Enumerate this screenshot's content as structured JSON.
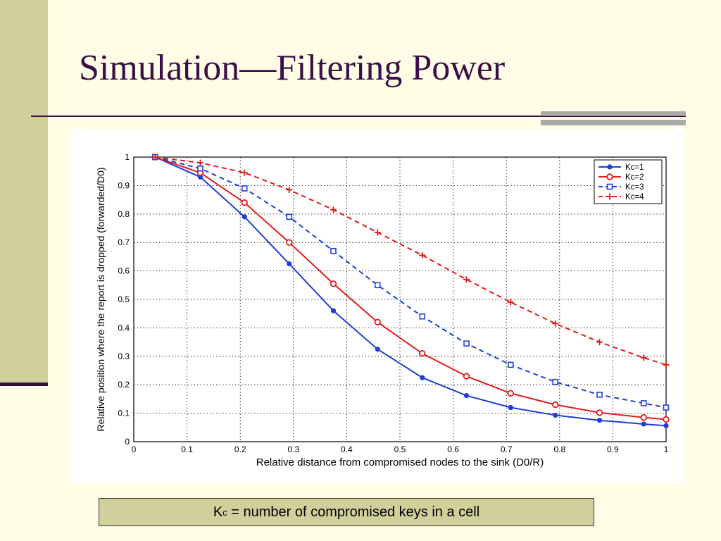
{
  "slide": {
    "title": "Simulation—Filtering Power",
    "caption": {
      "symbol": "K",
      "subscript": "c",
      "text": " = number of compromised keys in a cell"
    }
  },
  "colors": {
    "background": "#fffde6",
    "band": "#d1cf9c",
    "title": "#3a0f48",
    "accent": "#a9a9a9"
  },
  "chart_data": {
    "type": "line",
    "title": "",
    "xlabel": "Relative distance from compromised nodes to the sink (D0/R)",
    "ylabel": "Relative position where the report is dropped (forwarded/D0)",
    "xlim": [
      0,
      1
    ],
    "ylim": [
      0,
      1
    ],
    "xticks": [
      "0",
      "0.1",
      "0.2",
      "0.3",
      "0.4",
      "0.5",
      "0.6",
      "0.7",
      "0.8",
      "0.9",
      "1"
    ],
    "yticks": [
      "0",
      "0.1",
      "0.2",
      "0.3",
      "0.4",
      "0.5",
      "0.6",
      "0.7",
      "0.8",
      "0.9",
      "1"
    ],
    "grid": true,
    "legend": "top-right",
    "x": [
      0.04,
      0.125,
      0.208,
      0.292,
      0.375,
      0.458,
      0.542,
      0.625,
      0.708,
      0.792,
      0.875,
      0.958,
      1.0
    ],
    "series": [
      {
        "name": "Kc=1",
        "color": "#1f3fd6",
        "dash": "solid",
        "marker": "dot",
        "values": [
          1.0,
          0.93,
          0.79,
          0.625,
          0.46,
          0.325,
          0.225,
          0.162,
          0.12,
          0.093,
          0.075,
          0.062,
          0.056
        ]
      },
      {
        "name": "Kc=2",
        "color": "#e21b1b",
        "dash": "solid",
        "marker": "circle",
        "values": [
          1.0,
          0.945,
          0.84,
          0.7,
          0.555,
          0.42,
          0.31,
          0.23,
          0.17,
          0.13,
          0.102,
          0.085,
          0.078
        ]
      },
      {
        "name": "Kc=3",
        "color": "#1f3fd6",
        "dash": "dashed",
        "marker": "square",
        "values": [
          1.0,
          0.96,
          0.89,
          0.79,
          0.67,
          0.55,
          0.44,
          0.345,
          0.27,
          0.21,
          0.165,
          0.135,
          0.12
        ]
      },
      {
        "name": "Kc=4",
        "color": "#e21b1b",
        "dash": "dashed",
        "marker": "plus",
        "values": [
          1.0,
          0.98,
          0.945,
          0.885,
          0.815,
          0.735,
          0.655,
          0.57,
          0.49,
          0.415,
          0.35,
          0.295,
          0.27
        ]
      }
    ]
  }
}
